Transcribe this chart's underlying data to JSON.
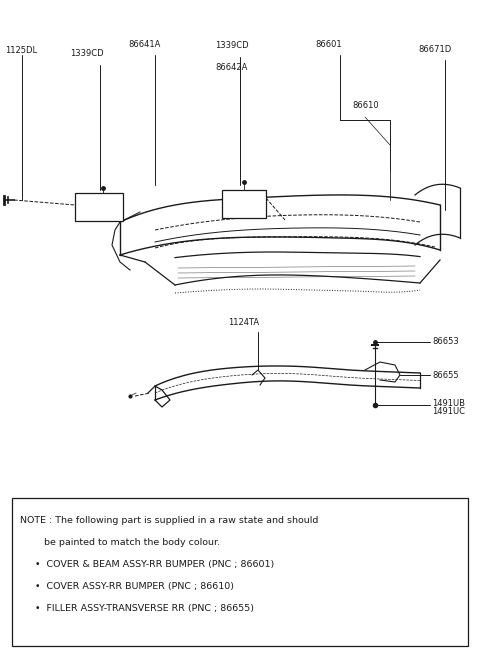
{
  "bg_color": "#ffffff",
  "line_color": "#1a1a1a",
  "text_color": "#1a1a1a",
  "fig_width": 4.8,
  "fig_height": 6.57,
  "dpi": 100,
  "note_line1": "NOTE : The following part is supplied in a raw state and should",
  "note_line2": "        be painted to match the body colour.",
  "note_line3": "     •  COVER & BEAM ASSY-RR BUMPER (PNC ; 86601)",
  "note_line4": "     •  COVER ASSY-RR BUMPER (PNC ; 86610)",
  "note_line5": "     •  FILLER ASSY-TRANSVERSE RR (PNC ; 86655)"
}
